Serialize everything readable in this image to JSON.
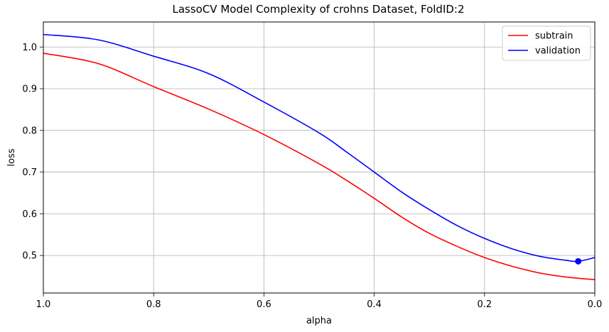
{
  "chart_data": {
    "type": "line",
    "title": "LassoCV Model Complexity of crohns Dataset, FoldID:2",
    "xlabel": "alpha",
    "ylabel": "loss",
    "x_inverted": true,
    "xlim": [
      1.0,
      0.0
    ],
    "ylim": [
      0.41,
      1.06
    ],
    "xticks": [
      1.0,
      0.8,
      0.6,
      0.4,
      0.2,
      0.0
    ],
    "xtick_labels": [
      "1.0",
      "0.8",
      "0.6",
      "0.4",
      "0.2",
      "0.0"
    ],
    "yticks": [
      0.5,
      0.6,
      0.7,
      0.8,
      0.9,
      1.0
    ],
    "ytick_labels": [
      "0.5",
      "0.6",
      "0.7",
      "0.8",
      "0.9",
      "1.0"
    ],
    "grid": true,
    "legend_position": "top-right",
    "series": [
      {
        "name": "subtrain",
        "color": "#ff0000",
        "x": [
          1.0,
          0.9,
          0.8,
          0.7,
          0.6,
          0.5,
          0.45,
          0.4,
          0.35,
          0.3,
          0.25,
          0.2,
          0.15,
          0.1,
          0.05,
          0.0
        ],
        "y": [
          0.985,
          0.96,
          0.905,
          0.851,
          0.79,
          0.72,
          0.68,
          0.637,
          0.592,
          0.553,
          0.522,
          0.495,
          0.474,
          0.458,
          0.448,
          0.442
        ]
      },
      {
        "name": "validation",
        "color": "#0000ff",
        "x": [
          1.0,
          0.9,
          0.8,
          0.7,
          0.6,
          0.5,
          0.45,
          0.4,
          0.35,
          0.3,
          0.25,
          0.2,
          0.15,
          0.1,
          0.05,
          0.03,
          0.0
        ],
        "y": [
          1.03,
          1.017,
          0.978,
          0.936,
          0.868,
          0.794,
          0.748,
          0.7,
          0.652,
          0.61,
          0.572,
          0.541,
          0.516,
          0.498,
          0.488,
          0.486,
          0.495
        ]
      }
    ],
    "markers": [
      {
        "series": "validation",
        "x": 0.03,
        "y": 0.486,
        "color": "#0000ff"
      }
    ]
  }
}
